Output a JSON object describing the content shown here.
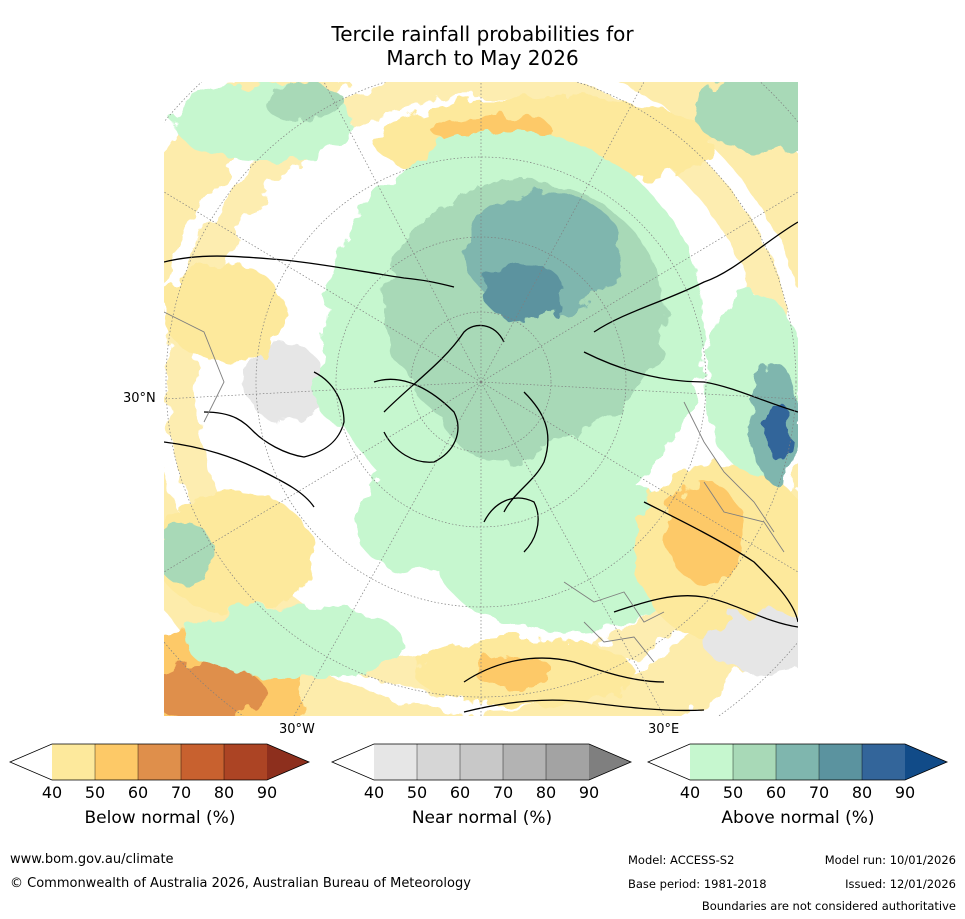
{
  "title": {
    "line1": "Tercile rainfall probabilities for",
    "line2": "March to May 2026"
  },
  "map": {
    "projection": "north-polar-stereographic",
    "lat_label": "30°N",
    "lon_label_west": "30°W",
    "lon_label_east": "30°E"
  },
  "colorbars": [
    {
      "id": "below",
      "label": "Below normal (%)",
      "ticks": [
        "40",
        "50",
        "60",
        "70",
        "80",
        "90"
      ],
      "colors": [
        "#fde99c",
        "#fdc967",
        "#df8f4b",
        "#c8612f",
        "#ac4424",
        "#8d2f1d"
      ]
    },
    {
      "id": "near",
      "label": "Near normal (%)",
      "ticks": [
        "40",
        "50",
        "60",
        "70",
        "80",
        "90"
      ],
      "colors": [
        "#e6e6e6",
        "#d6d6d6",
        "#c8c8c8",
        "#b3b3b3",
        "#a3a3a3",
        "#7f7f7f"
      ]
    },
    {
      "id": "above",
      "label": "Above normal (%)",
      "ticks": [
        "40",
        "50",
        "60",
        "70",
        "80",
        "90"
      ],
      "colors": [
        "#c6f7cf",
        "#a8d9b7",
        "#7fb6ae",
        "#5b939f",
        "#33659a",
        "#114b88"
      ]
    }
  ],
  "footer": {
    "url": "www.bom.gov.au/climate",
    "copyright": "© Commonwealth of Australia 2026, Australian Bureau of Meteorology",
    "model": "Model: ACCESS-S2",
    "base_period": "Base period: 1981-2018",
    "model_run": "Model run: 10/01/2026",
    "issued": "Issued: 12/01/2026",
    "disclaimer": "Boundaries are not considered authoritative"
  }
}
